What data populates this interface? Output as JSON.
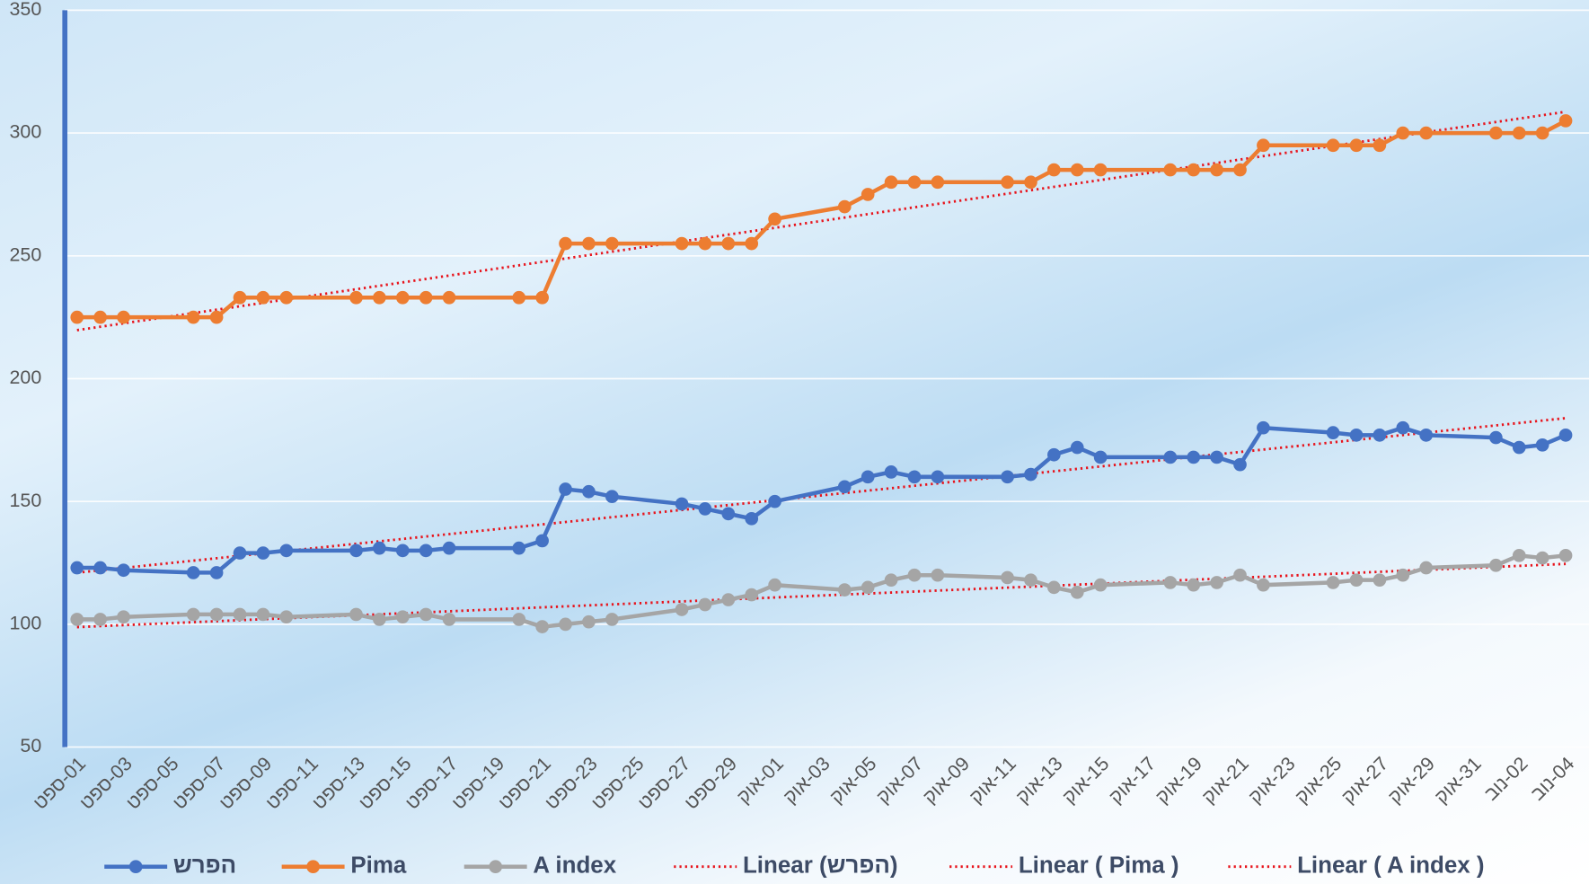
{
  "chart_data": {
    "type": "line",
    "categories": [
      "01-ספט",
      null,
      "03-ספט",
      null,
      "05-ספט",
      null,
      "07-ספט",
      null,
      "09-ספט",
      null,
      "11-ספט",
      null,
      "13-ספט",
      null,
      "15-ספט",
      null,
      "17-ספט",
      null,
      "19-ספט",
      null,
      "21-ספט",
      null,
      "23-ספט",
      null,
      "25-ספט",
      null,
      "27-ספט",
      null,
      "29-ספט",
      null,
      "01-אוק",
      null,
      "03-אוק",
      null,
      "05-אוק",
      null,
      "07-אוק",
      null,
      "09-אוק",
      null,
      "11-אוק",
      null,
      "13-אוק",
      null,
      "15-אוק",
      null,
      "17-אוק",
      null,
      "19-אוק",
      null,
      "21-אוק",
      null,
      "23-אוק",
      null,
      "25-אוק",
      null,
      "27-אוק",
      null,
      "29-אוק",
      null,
      "31-אוק",
      null,
      "02-נוב",
      null,
      "04-נוב"
    ],
    "series": [
      {
        "name": "הפרש",
        "color": "#4472c4",
        "trendline": {
          "name": "Linear (הפרש)",
          "color": "#e8141c"
        },
        "values": [
          123,
          123,
          122,
          null,
          null,
          121,
          121,
          129,
          129,
          130,
          null,
          null,
          130,
          131,
          130,
          130,
          131,
          null,
          null,
          131,
          134,
          155,
          154,
          152,
          null,
          null,
          149,
          147,
          145,
          143,
          150,
          null,
          null,
          156,
          160,
          162,
          160,
          160,
          null,
          null,
          160,
          161,
          169,
          172,
          168,
          null,
          null,
          168,
          168,
          168,
          165,
          180,
          null,
          null,
          178,
          177,
          177,
          180,
          177,
          null,
          null,
          176,
          172,
          173,
          177
        ]
      },
      {
        "name": "Pima",
        "color": "#ed7d31",
        "trendline": {
          "name": "Linear ( Pima )",
          "color": "#e8141c"
        },
        "values": [
          225,
          225,
          225,
          null,
          null,
          225,
          225,
          233,
          233,
          233,
          null,
          null,
          233,
          233,
          233,
          233,
          233,
          null,
          null,
          233,
          233,
          255,
          255,
          255,
          null,
          null,
          255,
          255,
          255,
          255,
          265,
          null,
          null,
          270,
          275,
          280,
          280,
          280,
          null,
          null,
          280,
          280,
          285,
          285,
          285,
          null,
          null,
          285,
          285,
          285,
          285,
          295,
          null,
          null,
          295,
          295,
          295,
          300,
          300,
          null,
          null,
          300,
          300,
          300,
          305
        ]
      },
      {
        "name": "A index",
        "color": "#a5a5a5",
        "trendline": {
          "name": "Linear ( A index )",
          "color": "#e8141c"
        },
        "values": [
          102,
          102,
          103,
          null,
          null,
          104,
          104,
          104,
          104,
          103,
          null,
          null,
          104,
          102,
          103,
          104,
          102,
          null,
          null,
          102,
          99,
          100,
          101,
          102,
          null,
          null,
          106,
          108,
          110,
          112,
          116,
          null,
          null,
          114,
          115,
          118,
          120,
          120,
          null,
          null,
          119,
          118,
          115,
          113,
          116,
          null,
          null,
          117,
          116,
          117,
          120,
          116,
          null,
          null,
          117,
          118,
          118,
          120,
          123,
          null,
          null,
          124,
          128,
          127,
          128
        ]
      }
    ],
    "connect_gaps": true,
    "ylim": [
      50,
      350
    ],
    "yticks": [
      50,
      100,
      150,
      200,
      250,
      300,
      350
    ],
    "grid": true,
    "legend": "bottom"
  }
}
